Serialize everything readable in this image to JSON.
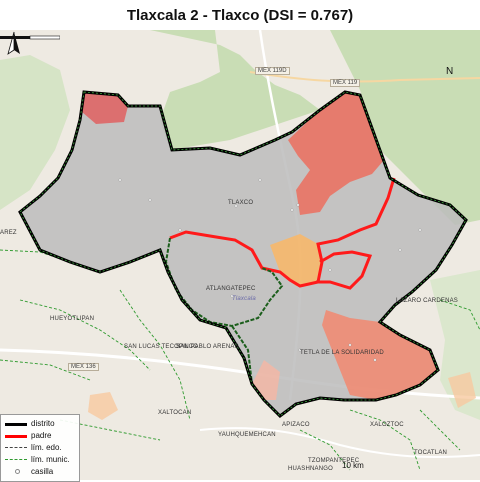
{
  "title": "Tlaxcala 2 - Tlaxco (DSI = 0.767)",
  "north_label": "N",
  "scale_label": "10 km",
  "road_labels": [
    "MEX 119D",
    "MEX 119",
    "MEX 136"
  ],
  "place_labels": [
    "TLAXCO",
    "ATLANGATEPEC",
    "LAZARO CARDENAS",
    "HUEYOTLIPAN",
    "SAN LUCAS TECOPILCO",
    "SAN PABLO ARENAS",
    "TETLA DE LA SOLIDARIDAD",
    "XALTOCAN",
    "YAUHQUEMEHCAN",
    "XALOZTOC",
    "TOCATLAN",
    "APIZACO",
    "TZOMPANTEPEC",
    "HUASHNANGO",
    "AREZ",
    "Tlaxcala"
  ],
  "legend": [
    {
      "label": "distrito",
      "color": "#000000",
      "style": "solid-thick"
    },
    {
      "label": "padre",
      "color": "#ff0000",
      "style": "solid-thick"
    },
    {
      "label": "lím. edo.",
      "color": "#444444",
      "style": "dashed"
    },
    {
      "label": "lím. munic.",
      "color": "#2e9a2e",
      "style": "dashed"
    },
    {
      "label": "casilla",
      "color": "#888888",
      "style": "dot"
    }
  ],
  "colors": {
    "district_fill": "#bcbcbc",
    "forest": "#c9ddb5",
    "base": "#eeeae2",
    "section_high": "#f08c74",
    "section_mid": "#f3b7a6",
    "section_top": "#e06060",
    "section_orange": "#f7b86b"
  }
}
